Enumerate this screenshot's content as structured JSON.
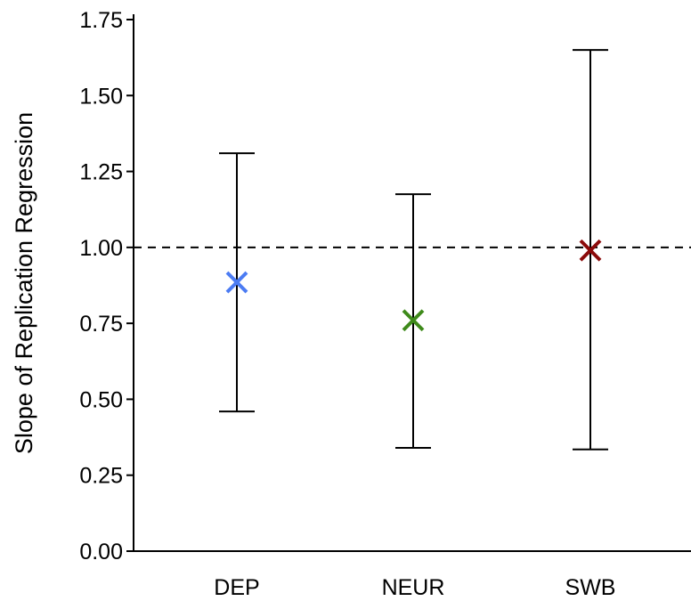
{
  "chart_data": {
    "type": "scatter",
    "title": "",
    "xlabel": "",
    "ylabel": "Slope of Replication Regression",
    "ylim": [
      0,
      1.75
    ],
    "yticks": [
      0.0,
      0.25,
      0.5,
      0.75,
      1.0,
      1.25,
      1.5,
      1.75
    ],
    "ytick_labels": [
      "0.00",
      "0.25",
      "0.50",
      "0.75",
      "1.00",
      "1.25",
      "1.50",
      "1.75"
    ],
    "categories": [
      "DEP",
      "NEUR",
      "SWB"
    ],
    "points": [
      {
        "category": "DEP",
        "estimate": 0.885,
        "lower": 0.46,
        "upper": 1.31,
        "color": "#4C7CF3"
      },
      {
        "category": "NEUR",
        "estimate": 0.76,
        "lower": 0.34,
        "upper": 1.175,
        "color": "#3E8A1A"
      },
      {
        "category": "SWB",
        "estimate": 0.99,
        "lower": 0.335,
        "upper": 1.65,
        "color": "#8B0A0A"
      }
    ],
    "reference_line": {
      "y": 1.0,
      "style": "dashed"
    },
    "marker": "x",
    "grid": false,
    "legend": "none"
  }
}
